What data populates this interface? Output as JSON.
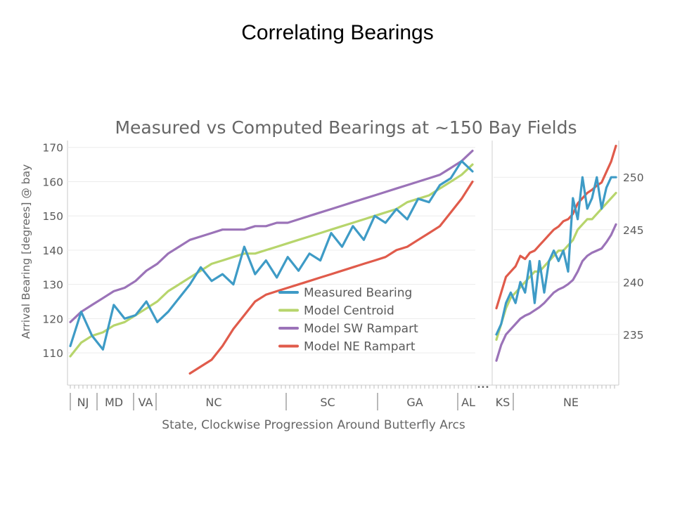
{
  "slide": {
    "title": "Correlating Bearings"
  },
  "chart_data": {
    "type": "line",
    "title": "Measured vs Computed Bearings at ~150 Bay Fields",
    "ylabel": "Arrival Bearing [degrees] @ bay",
    "xlabel": "State, Clockwise Progression Around Butterfly Arcs",
    "ellipsis": "•••",
    "legend": {
      "placement": "lower-right"
    },
    "series_styles": [
      {
        "name": "Measured Bearing",
        "color": "#3e9bc6"
      },
      {
        "name": "Model Centroid",
        "color": "#b7d56c"
      },
      {
        "name": "Model SW Rampart",
        "color": "#9b73b8"
      },
      {
        "name": "Model NE Rampart",
        "color": "#e05b4b"
      }
    ],
    "panels": [
      {
        "id": "east",
        "ylim": [
          101,
          172
        ],
        "yticks": [
          110,
          120,
          130,
          140,
          150,
          160,
          170
        ],
        "y_axis_side": "left",
        "states": [
          "NJ",
          "MD",
          "VA",
          "NC",
          "SC",
          "GA",
          "AL"
        ],
        "x": [
          0,
          4,
          8,
          12,
          16,
          20,
          24,
          28,
          32,
          36,
          40,
          44,
          48,
          52,
          56,
          60,
          64,
          68,
          72,
          76,
          80,
          84,
          88,
          92,
          96,
          100,
          104,
          108,
          112,
          116,
          120,
          124,
          128,
          132,
          136,
          140,
          144,
          148
        ],
        "series": [
          {
            "name": "Measured Bearing",
            "values": [
              112,
              122,
              115,
              111,
              124,
              120,
              121,
              125,
              119,
              122,
              126,
              130,
              135,
              131,
              133,
              130,
              141,
              133,
              137,
              132,
              138,
              134,
              139,
              137,
              145,
              141,
              147,
              143,
              150,
              148,
              152,
              149,
              155,
              154,
              159,
              161,
              166,
              163
            ]
          },
          {
            "name": "Model Centroid",
            "values": [
              109,
              113,
              115,
              116,
              118,
              119,
              121,
              123,
              125,
              128,
              130,
              132,
              134,
              136,
              137,
              138,
              139,
              139,
              140,
              141,
              142,
              143,
              144,
              145,
              146,
              147,
              148,
              149,
              150,
              151,
              152,
              154,
              155,
              156,
              158,
              160,
              162,
              165
            ]
          },
          {
            "name": "Model SW Rampart",
            "values": [
              119,
              122,
              124,
              126,
              128,
              129,
              131,
              134,
              136,
              139,
              141,
              143,
              144,
              145,
              146,
              146,
              146,
              147,
              147,
              148,
              148,
              149,
              150,
              151,
              152,
              153,
              154,
              155,
              156,
              157,
              158,
              159,
              160,
              161,
              162,
              164,
              166,
              169
            ]
          },
          {
            "name": "Model NE Rampart",
            "values": [
              null,
              null,
              null,
              null,
              null,
              null,
              null,
              null,
              null,
              null,
              null,
              104,
              106,
              108,
              112,
              117,
              121,
              125,
              127,
              128,
              129,
              130,
              131,
              132,
              133,
              134,
              135,
              136,
              137,
              138,
              140,
              141,
              143,
              145,
              147,
              151,
              155,
              160
            ]
          }
        ]
      },
      {
        "id": "west",
        "ylim": [
          230.3,
          253.5
        ],
        "yticks": [
          235,
          240,
          245,
          250
        ],
        "y_axis_side": "right",
        "states": [
          "KS",
          "NE"
        ],
        "x": [
          0,
          1,
          2,
          3,
          4,
          5,
          6,
          7,
          8,
          9,
          10,
          11,
          12,
          13,
          14,
          15,
          16,
          17,
          18,
          19,
          20,
          21,
          22,
          23,
          24,
          25
        ],
        "series": [
          {
            "name": "Measured Bearing",
            "values": [
              235,
              236,
              238,
              239,
              238,
              240,
              239,
              242,
              238,
              242,
              239,
              242,
              243,
              242,
              243,
              241,
              248,
              246,
              250,
              247,
              248,
              250,
              247,
              249,
              250,
              250
            ]
          },
          {
            "name": "Model Centroid",
            "values": [
              234.5,
              236,
              237.5,
              238.5,
              239,
              239.5,
              240,
              240.5,
              241,
              241,
              241.5,
              242,
              242.5,
              243,
              243,
              243.5,
              244,
              245,
              245.5,
              246,
              246,
              246.5,
              247,
              247.5,
              248,
              248.5
            ]
          },
          {
            "name": "Model SW Rampart",
            "values": [
              232.5,
              234,
              235,
              235.5,
              236,
              236.5,
              236.8,
              237,
              237.3,
              237.6,
              238,
              238.5,
              239,
              239.3,
              239.5,
              239.8,
              240.2,
              241,
              242,
              242.5,
              242.8,
              243,
              243.2,
              243.8,
              244.5,
              245.5
            ]
          },
          {
            "name": "Model NE Rampart",
            "values": [
              237.5,
              239,
              240.5,
              241,
              241.5,
              242.5,
              242.2,
              242.8,
              243,
              243.5,
              244,
              244.5,
              245,
              245.3,
              245.8,
              246,
              246.5,
              247.5,
              248,
              248.5,
              248.8,
              249.2,
              249.5,
              250.5,
              251.5,
              253
            ]
          }
        ]
      }
    ]
  }
}
